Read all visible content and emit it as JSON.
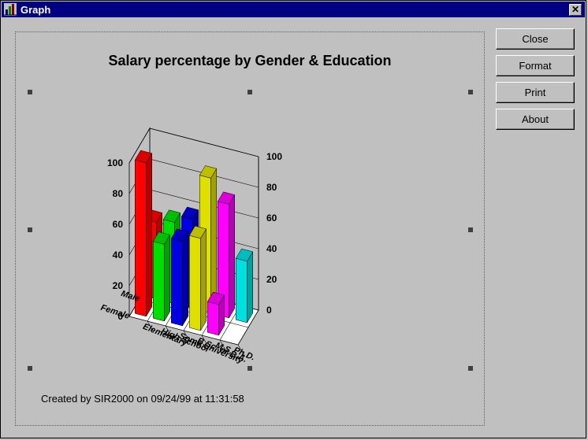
{
  "window": {
    "title": "Graph"
  },
  "buttons": {
    "close": "Close",
    "format": "Format",
    "print": "Print",
    "about": "About"
  },
  "footer": "Created by SIR2000 on 09/24/99 at 11:31:58",
  "chart_data": {
    "type": "bar",
    "title": "Salary percentage by Gender & Education",
    "categories": [
      "Elementary",
      "High School",
      "Some University",
      "B.Sc. or B.A.",
      "M.S.",
      "Ph.D."
    ],
    "series": [
      {
        "name": "Male",
        "values": [
          50,
          53,
          58,
          88,
          74,
          40
        ]
      },
      {
        "name": "Female",
        "values": [
          100,
          50,
          55,
          60,
          20,
          0
        ]
      }
    ],
    "colors": [
      "#ff0000",
      "#00e000",
      "#0000e0",
      "#e0e000",
      "#ff00ff",
      "#00e0e0"
    ],
    "ylim": [
      0,
      100
    ],
    "yticks": [
      "0",
      "20",
      "40",
      "60",
      "80",
      "100"
    ]
  }
}
